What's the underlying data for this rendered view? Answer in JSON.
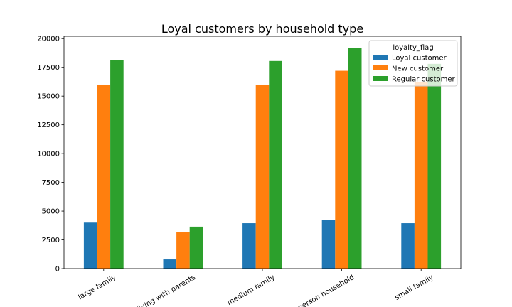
{
  "chart_data": {
    "type": "bar",
    "title": "Loyal customers by household type",
    "xlabel": "",
    "ylabel": "",
    "categories": [
      "large family",
      "living with parents",
      "medium family",
      "one person household",
      "small family"
    ],
    "series": [
      {
        "name": "Loyal customer",
        "color": "#1f77b4",
        "values": [
          4000,
          800,
          3950,
          4250,
          3950
        ]
      },
      {
        "name": "New customer",
        "color": "#ff7f0e",
        "values": [
          16000,
          3150,
          16000,
          17200,
          16200
        ]
      },
      {
        "name": "Regular customer",
        "color": "#2ca02c",
        "values": [
          18100,
          3650,
          18050,
          19200,
          17800
        ]
      }
    ],
    "ylim": [
      0,
      20200
    ],
    "yticks": [
      0,
      2500,
      5000,
      7500,
      10000,
      12500,
      15000,
      17500,
      20000
    ],
    "legend": {
      "title": "loyalty_flag",
      "placement": "top-right"
    },
    "grid": false
  }
}
